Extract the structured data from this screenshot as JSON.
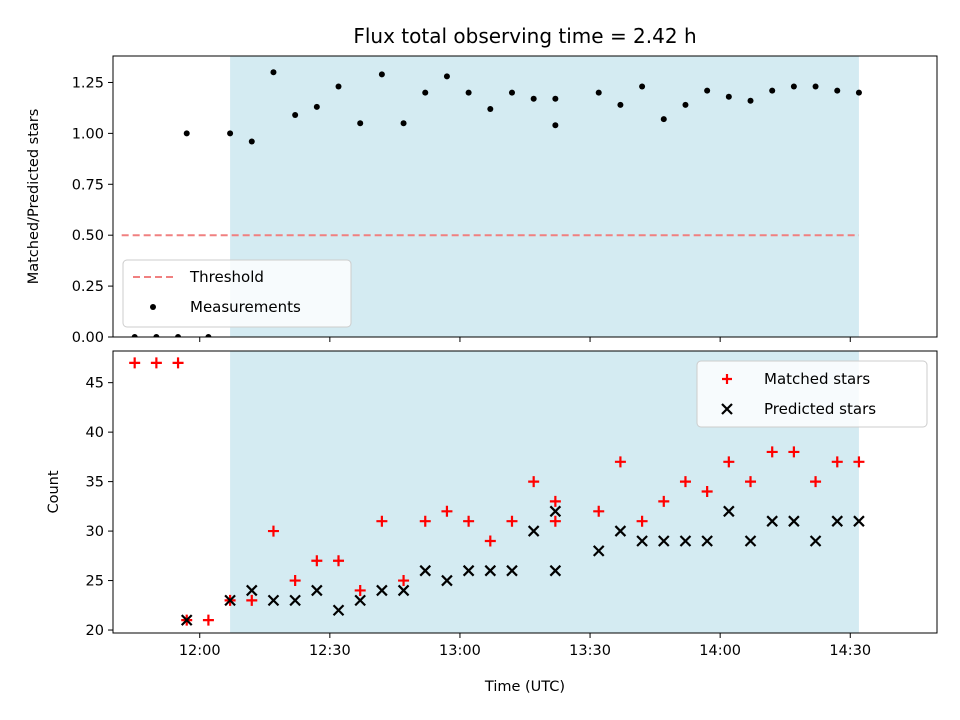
{
  "chart_data": {
    "title": "Flux total observing time = 2.42 h",
    "xlabel": "Time (UTC)",
    "x_ticks": [
      "12:00",
      "12:30",
      "13:00",
      "13:30",
      "14:00",
      "14:30"
    ],
    "xlim": [
      "11:40",
      "14:50"
    ],
    "shaded_region": {
      "start": "12:07",
      "end": "14:32",
      "color": "#add8e6"
    },
    "panels": [
      {
        "type": "scatter",
        "ylabel": "Matched/Predicted stars",
        "ylim": [
          0,
          1.38
        ],
        "y_ticks": [
          "0.00",
          "0.25",
          "0.50",
          "0.75",
          "1.00",
          "1.25"
        ],
        "legend_position": "lower-left",
        "series": [
          {
            "name": "Threshold",
            "style": "dashed-line",
            "color": "#f08080",
            "x": [
              "11:42",
              "14:32"
            ],
            "y": [
              0.5,
              0.5
            ]
          },
          {
            "name": "Measurements",
            "style": "dot",
            "color": "#000000",
            "x": [
              "11:45",
              "11:50",
              "11:55",
              "11:57",
              "12:02",
              "12:07",
              "12:12",
              "12:17",
              "12:22",
              "12:27",
              "12:32",
              "12:37",
              "12:42",
              "12:47",
              "12:52",
              "12:57",
              "13:02",
              "13:07",
              "13:12",
              "13:17",
              "13:22",
              "13:22",
              "13:32",
              "13:37",
              "13:42",
              "13:47",
              "13:52",
              "13:57",
              "14:02",
              "14:07",
              "14:12",
              "14:17",
              "14:22",
              "14:27",
              "14:32"
            ],
            "y": [
              0.0,
              0.0,
              0.0,
              1.0,
              0.0,
              1.0,
              0.96,
              1.3,
              1.09,
              1.13,
              1.23,
              1.05,
              1.29,
              1.05,
              1.2,
              1.28,
              1.2,
              1.12,
              1.2,
              1.17,
              1.04,
              1.17,
              1.2,
              1.14,
              1.23,
              1.07,
              1.14,
              1.21,
              1.18,
              1.16,
              1.21,
              1.23,
              1.23,
              1.21,
              1.2
            ]
          }
        ]
      },
      {
        "type": "scatter",
        "ylabel": "Count",
        "ylim": [
          19.7,
          48.2
        ],
        "y_ticks": [
          "20",
          "25",
          "30",
          "35",
          "40",
          "45"
        ],
        "legend_position": "upper-right",
        "series": [
          {
            "name": "Matched stars",
            "marker": "plus",
            "color": "#ff0000",
            "x": [
              "11:45",
              "11:50",
              "11:55",
              "11:57",
              "12:02",
              "12:07",
              "12:12",
              "12:17",
              "12:22",
              "12:27",
              "12:32",
              "12:37",
              "12:42",
              "12:47",
              "12:52",
              "12:57",
              "13:02",
              "13:07",
              "13:12",
              "13:17",
              "13:22",
              "13:22",
              "13:32",
              "13:37",
              "13:42",
              "13:47",
              "13:52",
              "13:57",
              "14:02",
              "14:07",
              "14:12",
              "14:17",
              "14:22",
              "14:27",
              "14:32"
            ],
            "y": [
              47,
              47,
              47,
              21,
              21,
              23,
              23,
              30,
              25,
              27,
              27,
              24,
              31,
              25,
              31,
              32,
              31,
              29,
              31,
              35,
              33,
              31,
              32,
              37,
              31,
              33,
              35,
              34,
              37,
              35,
              38,
              38,
              35,
              37,
              37
            ]
          },
          {
            "name": "Predicted stars",
            "marker": "x",
            "color": "#000000",
            "x": [
              "11:57",
              "12:07",
              "12:12",
              "12:17",
              "12:22",
              "12:27",
              "12:32",
              "12:37",
              "12:42",
              "12:47",
              "12:52",
              "12:57",
              "13:02",
              "13:07",
              "13:12",
              "13:17",
              "13:22",
              "13:22",
              "13:32",
              "13:37",
              "13:42",
              "13:47",
              "13:52",
              "13:57",
              "14:02",
              "14:07",
              "14:12",
              "14:17",
              "14:22",
              "14:27",
              "14:32"
            ],
            "y": [
              21,
              23,
              24,
              23,
              23,
              24,
              22,
              23,
              24,
              24,
              26,
              25,
              26,
              26,
              26,
              30,
              32,
              26,
              28,
              30,
              29,
              29,
              29,
              29,
              32,
              29,
              31,
              31,
              29,
              31,
              31
            ]
          }
        ]
      }
    ]
  }
}
